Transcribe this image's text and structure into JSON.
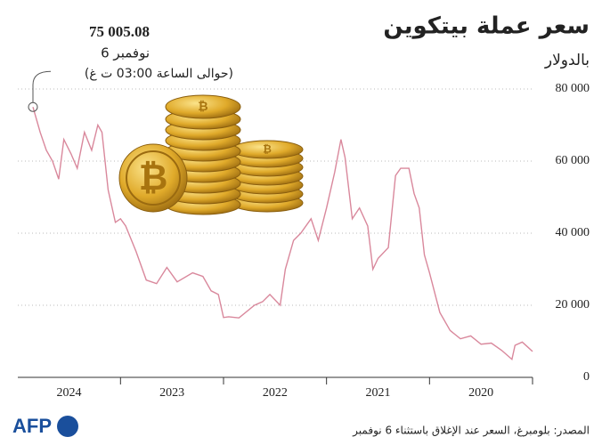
{
  "chart_data": {
    "type": "line",
    "title": "سعر عملة بيتكوين",
    "subtitle": "بالدولار",
    "source": "المصدر: بلومبرغ، السعر عند الإغلاق باستثناء 6 نوفمبر",
    "logo": "AFP",
    "annotation": {
      "value_label": "75 005.08",
      "date": "6 نوفمبر",
      "time": "(حوالى الساعة 03:00 ت غ)"
    },
    "x": [
      2020.0,
      2020.05,
      2020.1,
      2020.17,
      2020.2,
      2020.3,
      2020.4,
      2020.5,
      2020.6,
      2020.7,
      2020.8,
      2020.9,
      2021.0,
      2021.05,
      2021.1,
      2021.15,
      2021.2,
      2021.28,
      2021.33,
      2021.4,
      2021.5,
      2021.55,
      2021.6,
      2021.68,
      2021.75,
      2021.82,
      2021.86,
      2021.92,
      2022.0,
      2022.08,
      2022.15,
      2022.25,
      2022.32,
      2022.4,
      2022.45,
      2022.55,
      2022.62,
      2022.7,
      2022.85,
      2022.95,
      2023.0,
      2023.05,
      2023.12,
      2023.2,
      2023.3,
      2023.45,
      2023.55,
      2023.65,
      2023.75,
      2023.85,
      2023.95,
      2024.0,
      2024.05,
      2024.12,
      2024.18,
      2024.22,
      2024.28,
      2024.35,
      2024.42,
      2024.48,
      2024.55,
      2024.6,
      2024.66,
      2024.72,
      2024.78,
      2024.85
    ],
    "series": [
      {
        "name": "بيتكوين",
        "color": "#d9889c",
        "values": [
          7200,
          8500,
          9800,
          8900,
          5000,
          7500,
          9500,
          9200,
          11500,
          10700,
          13000,
          18000,
          29000,
          34000,
          47000,
          51000,
          58000,
          58000,
          56000,
          36000,
          33000,
          30000,
          42000,
          47000,
          44000,
          61000,
          66000,
          57000,
          47000,
          38000,
          44000,
          40000,
          38000,
          30000,
          20000,
          23000,
          21000,
          20000,
          16500,
          16800,
          16600,
          23000,
          24000,
          28000,
          29000,
          26500,
          30500,
          26000,
          27000,
          35000,
          42000,
          44000,
          43000,
          52000,
          68000,
          70000,
          63000,
          68000,
          58000,
          62000,
          66000,
          55000,
          60000,
          63000,
          68000,
          75005.08
        ]
      }
    ],
    "xlim": [
      2024.85,
      2020.0
    ],
    "xticks": [
      2020,
      2021,
      2022,
      2023,
      2024
    ],
    "ylim": [
      0,
      80000
    ],
    "yticks": [
      0,
      {
        "value": 20000,
        "label": "20 000"
      },
      {
        "value": 40000,
        "label": "40 000"
      },
      {
        "value": 60000,
        "label": "60 000"
      },
      {
        "value": 80000,
        "label": "80 000"
      }
    ],
    "grid": true
  }
}
